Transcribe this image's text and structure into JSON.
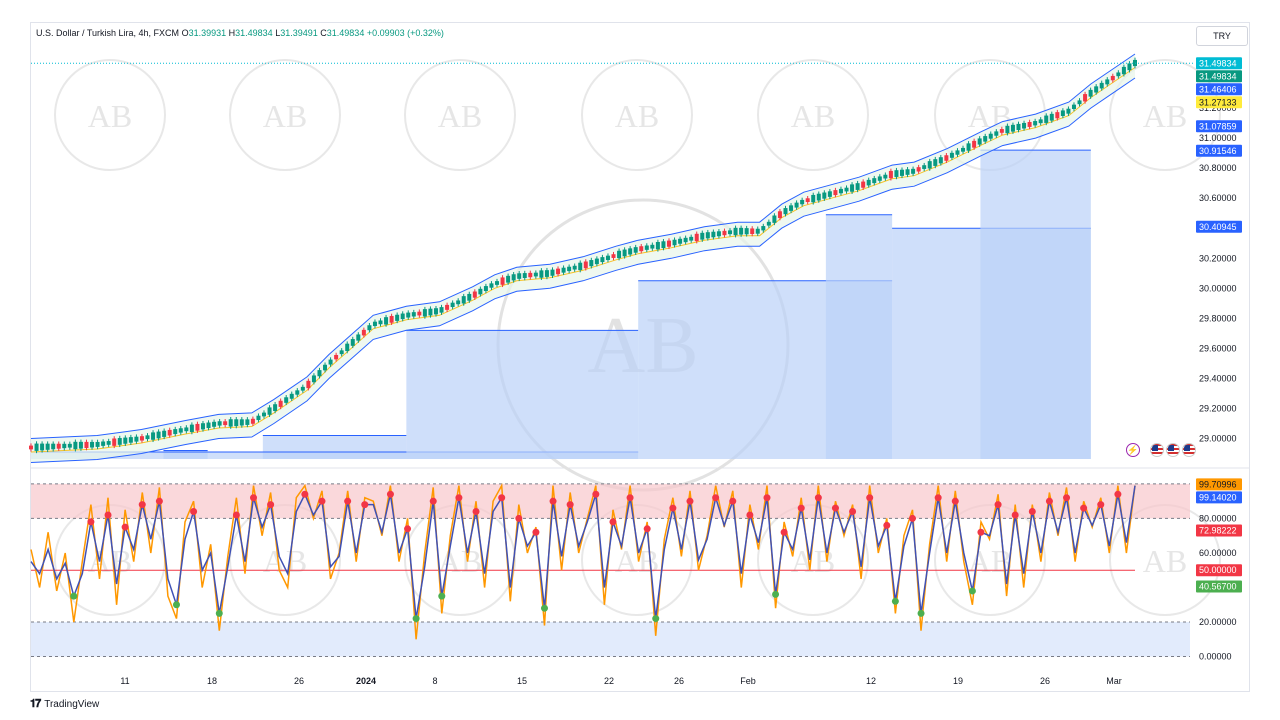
{
  "header": {
    "symbol": "U.S. Dollar / Turkish Lira, 4h, FXCM",
    "o_label": "O",
    "o": "31.39931",
    "h_label": "H",
    "h": "31.49834",
    "l_label": "L",
    "l": "31.39491",
    "c_label": "C",
    "c": "31.49834",
    "change": "+0.09903 (+0.32%)"
  },
  "currency_button": "TRY",
  "logo_text": "TradingView",
  "watermark_text": "AB",
  "colors": {
    "up": "#089981",
    "down": "#f23645",
    "band": "#2962ff",
    "basis": "#f7c325",
    "stoch_k": "#ff9800",
    "stoch_d": "#3f51b5",
    "fill": "#bbd1f8"
  },
  "chart_data": [
    {
      "type": "candlestick",
      "title": "U.S. Dollar / Turkish Lira, 4h, FXCM",
      "y_axis": {
        "ticks": [
          "31.20000",
          "31.00000",
          "30.80000",
          "30.60000",
          "30.40000",
          "30.20000",
          "30.00000",
          "29.80000",
          "29.60000",
          "29.40000",
          "29.20000",
          "29.00000"
        ],
        "ylim": [
          28.85,
          31.6
        ]
      },
      "x_axis": {
        "ticks": [
          "11",
          "18",
          "26",
          "2024",
          "8",
          "15",
          "22",
          "26",
          "Feb",
          "12",
          "19",
          "26",
          "Mar"
        ]
      },
      "price_tags": [
        {
          "label": "31.49834",
          "value": 31.49834,
          "bg": "#00bcd4",
          "fg": "#ffffff"
        },
        {
          "label": "31.49834",
          "value": 31.49834,
          "bg": "#089981",
          "fg": "#ffffff"
        },
        {
          "label": "31.46406",
          "value": 31.46406,
          "bg": "#2962ff",
          "fg": "#ffffff"
        },
        {
          "label": "31.27133",
          "value": 31.27133,
          "bg": "#ffeb3b",
          "fg": "#131722"
        },
        {
          "label": "31.07859",
          "value": 31.07859,
          "bg": "#2962ff",
          "fg": "#ffffff"
        },
        {
          "label": "30.91546",
          "value": 30.91546,
          "bg": "#2962ff",
          "fg": "#ffffff"
        },
        {
          "label": "30.40945",
          "value": 30.40945,
          "bg": "#2962ff",
          "fg": "#ffffff"
        }
      ],
      "trend_path": [
        [
          0,
          28.94
        ],
        [
          0.03,
          28.95
        ],
        [
          0.06,
          28.96
        ],
        [
          0.1,
          29.0
        ],
        [
          0.14,
          29.06
        ],
        [
          0.17,
          29.1
        ],
        [
          0.2,
          29.11
        ],
        [
          0.22,
          29.2
        ],
        [
          0.25,
          29.35
        ],
        [
          0.27,
          29.5
        ],
        [
          0.29,
          29.63
        ],
        [
          0.31,
          29.76
        ],
        [
          0.34,
          29.82
        ],
        [
          0.37,
          29.85
        ],
        [
          0.4,
          29.95
        ],
        [
          0.42,
          30.03
        ],
        [
          0.44,
          30.08
        ],
        [
          0.47,
          30.1
        ],
        [
          0.5,
          30.15
        ],
        [
          0.53,
          30.22
        ],
        [
          0.55,
          30.26
        ],
        [
          0.58,
          30.3
        ],
        [
          0.61,
          30.35
        ],
        [
          0.64,
          30.38
        ],
        [
          0.66,
          30.38
        ],
        [
          0.68,
          30.5
        ],
        [
          0.7,
          30.58
        ],
        [
          0.72,
          30.62
        ],
        [
          0.75,
          30.68
        ],
        [
          0.78,
          30.76
        ],
        [
          0.8,
          30.78
        ],
        [
          0.83,
          30.87
        ],
        [
          0.86,
          30.98
        ],
        [
          0.88,
          31.05
        ],
        [
          0.91,
          31.1
        ],
        [
          0.94,
          31.18
        ],
        [
          0.96,
          31.3
        ],
        [
          0.98,
          31.4
        ],
        [
          1.0,
          31.5
        ]
      ],
      "support_levels": [
        {
          "value": 28.92,
          "start": 0.12,
          "end": 0.16
        },
        {
          "value": 29.02,
          "start": 0.21,
          "end": 0.34
        },
        {
          "value": 28.91,
          "start": 0.0,
          "end": 0.55
        },
        {
          "value": 29.72,
          "start": 0.34,
          "end": 0.55
        },
        {
          "value": 30.05,
          "start": 0.55,
          "end": 0.78
        },
        {
          "value": 30.49,
          "start": 0.72,
          "end": 0.78
        },
        {
          "value": 30.4,
          "start": 0.78,
          "end": 0.96
        },
        {
          "value": 30.92,
          "start": 0.86,
          "end": 0.96
        }
      ]
    },
    {
      "type": "line",
      "title": "Stochastic",
      "y_axis": {
        "ticks": [
          "80.00000",
          "60.00000",
          "20.00000",
          "0.00000"
        ],
        "ylim": [
          -2,
          104
        ]
      },
      "levels": {
        "upper": 80,
        "middle": 50,
        "lower": 20
      },
      "value_tags": [
        {
          "label": "99.70996",
          "value": 99.70996,
          "bg": "#ff9800",
          "fg": "#131722"
        },
        {
          "label": "99.14020",
          "value": 99.1402,
          "bg": "#2962ff",
          "fg": "#ffffff"
        },
        {
          "label": "72.98222",
          "value": 72.98222,
          "bg": "#f23645",
          "fg": "#ffffff"
        },
        {
          "label": "50.00000",
          "value": 50.0,
          "bg": "#f23645",
          "fg": "#ffffff"
        },
        {
          "label": "40.56700",
          "value": 40.567,
          "bg": "#4caf50",
          "fg": "#ffffff"
        }
      ],
      "k_series": [
        62,
        40,
        72,
        38,
        60,
        20,
        55,
        88,
        45,
        92,
        30,
        85,
        55,
        95,
        60,
        98,
        35,
        22,
        78,
        90,
        40,
        65,
        15,
        58,
        92,
        48,
        99,
        70,
        95,
        50,
        40,
        92,
        99,
        80,
        96,
        45,
        60,
        96,
        55,
        92,
        90,
        70,
        99,
        55,
        80,
        10,
        60,
        98,
        25,
        70,
        99,
        55,
        90,
        40,
        90,
        99,
        32,
        88,
        60,
        75,
        18,
        99,
        50,
        95,
        60,
        80,
        99,
        30,
        85,
        62,
        99,
        55,
        78,
        12,
        68,
        92,
        58,
        96,
        50,
        70,
        99,
        75,
        96,
        40,
        88,
        62,
        99,
        28,
        78,
        58,
        92,
        50,
        99,
        55,
        90,
        70,
        88,
        45,
        99,
        60,
        80,
        25,
        70,
        85,
        15,
        65,
        99,
        55,
        96,
        55,
        30,
        78,
        68,
        94,
        35,
        88,
        40,
        88,
        55,
        95,
        70,
        98,
        55,
        90,
        75,
        92,
        60,
        99,
        60,
        99
      ],
      "d_series": [
        55,
        48,
        62,
        45,
        54,
        35,
        48,
        78,
        55,
        82,
        42,
        75,
        62,
        88,
        68,
        90,
        45,
        30,
        68,
        84,
        50,
        60,
        25,
        52,
        82,
        55,
        92,
        75,
        88,
        58,
        48,
        84,
        94,
        82,
        90,
        52,
        58,
        90,
        60,
        88,
        88,
        72,
        94,
        60,
        74,
        22,
        52,
        90,
        35,
        64,
        92,
        60,
        84,
        48,
        84,
        92,
        40,
        80,
        64,
        72,
        28,
        90,
        58,
        88,
        64,
        78,
        94,
        40,
        78,
        64,
        92,
        60,
        74,
        22,
        62,
        86,
        62,
        90,
        56,
        68,
        92,
        76,
        90,
        48,
        82,
        66,
        92,
        36,
        72,
        62,
        86,
        56,
        92,
        60,
        86,
        72,
        84,
        52,
        92,
        64,
        76,
        32,
        64,
        80,
        25,
        60,
        92,
        60,
        90,
        60,
        38,
        72,
        70,
        88,
        42,
        82,
        48,
        84,
        60,
        90,
        72,
        92,
        60,
        86,
        76,
        88,
        64,
        94,
        66,
        99
      ]
    }
  ]
}
